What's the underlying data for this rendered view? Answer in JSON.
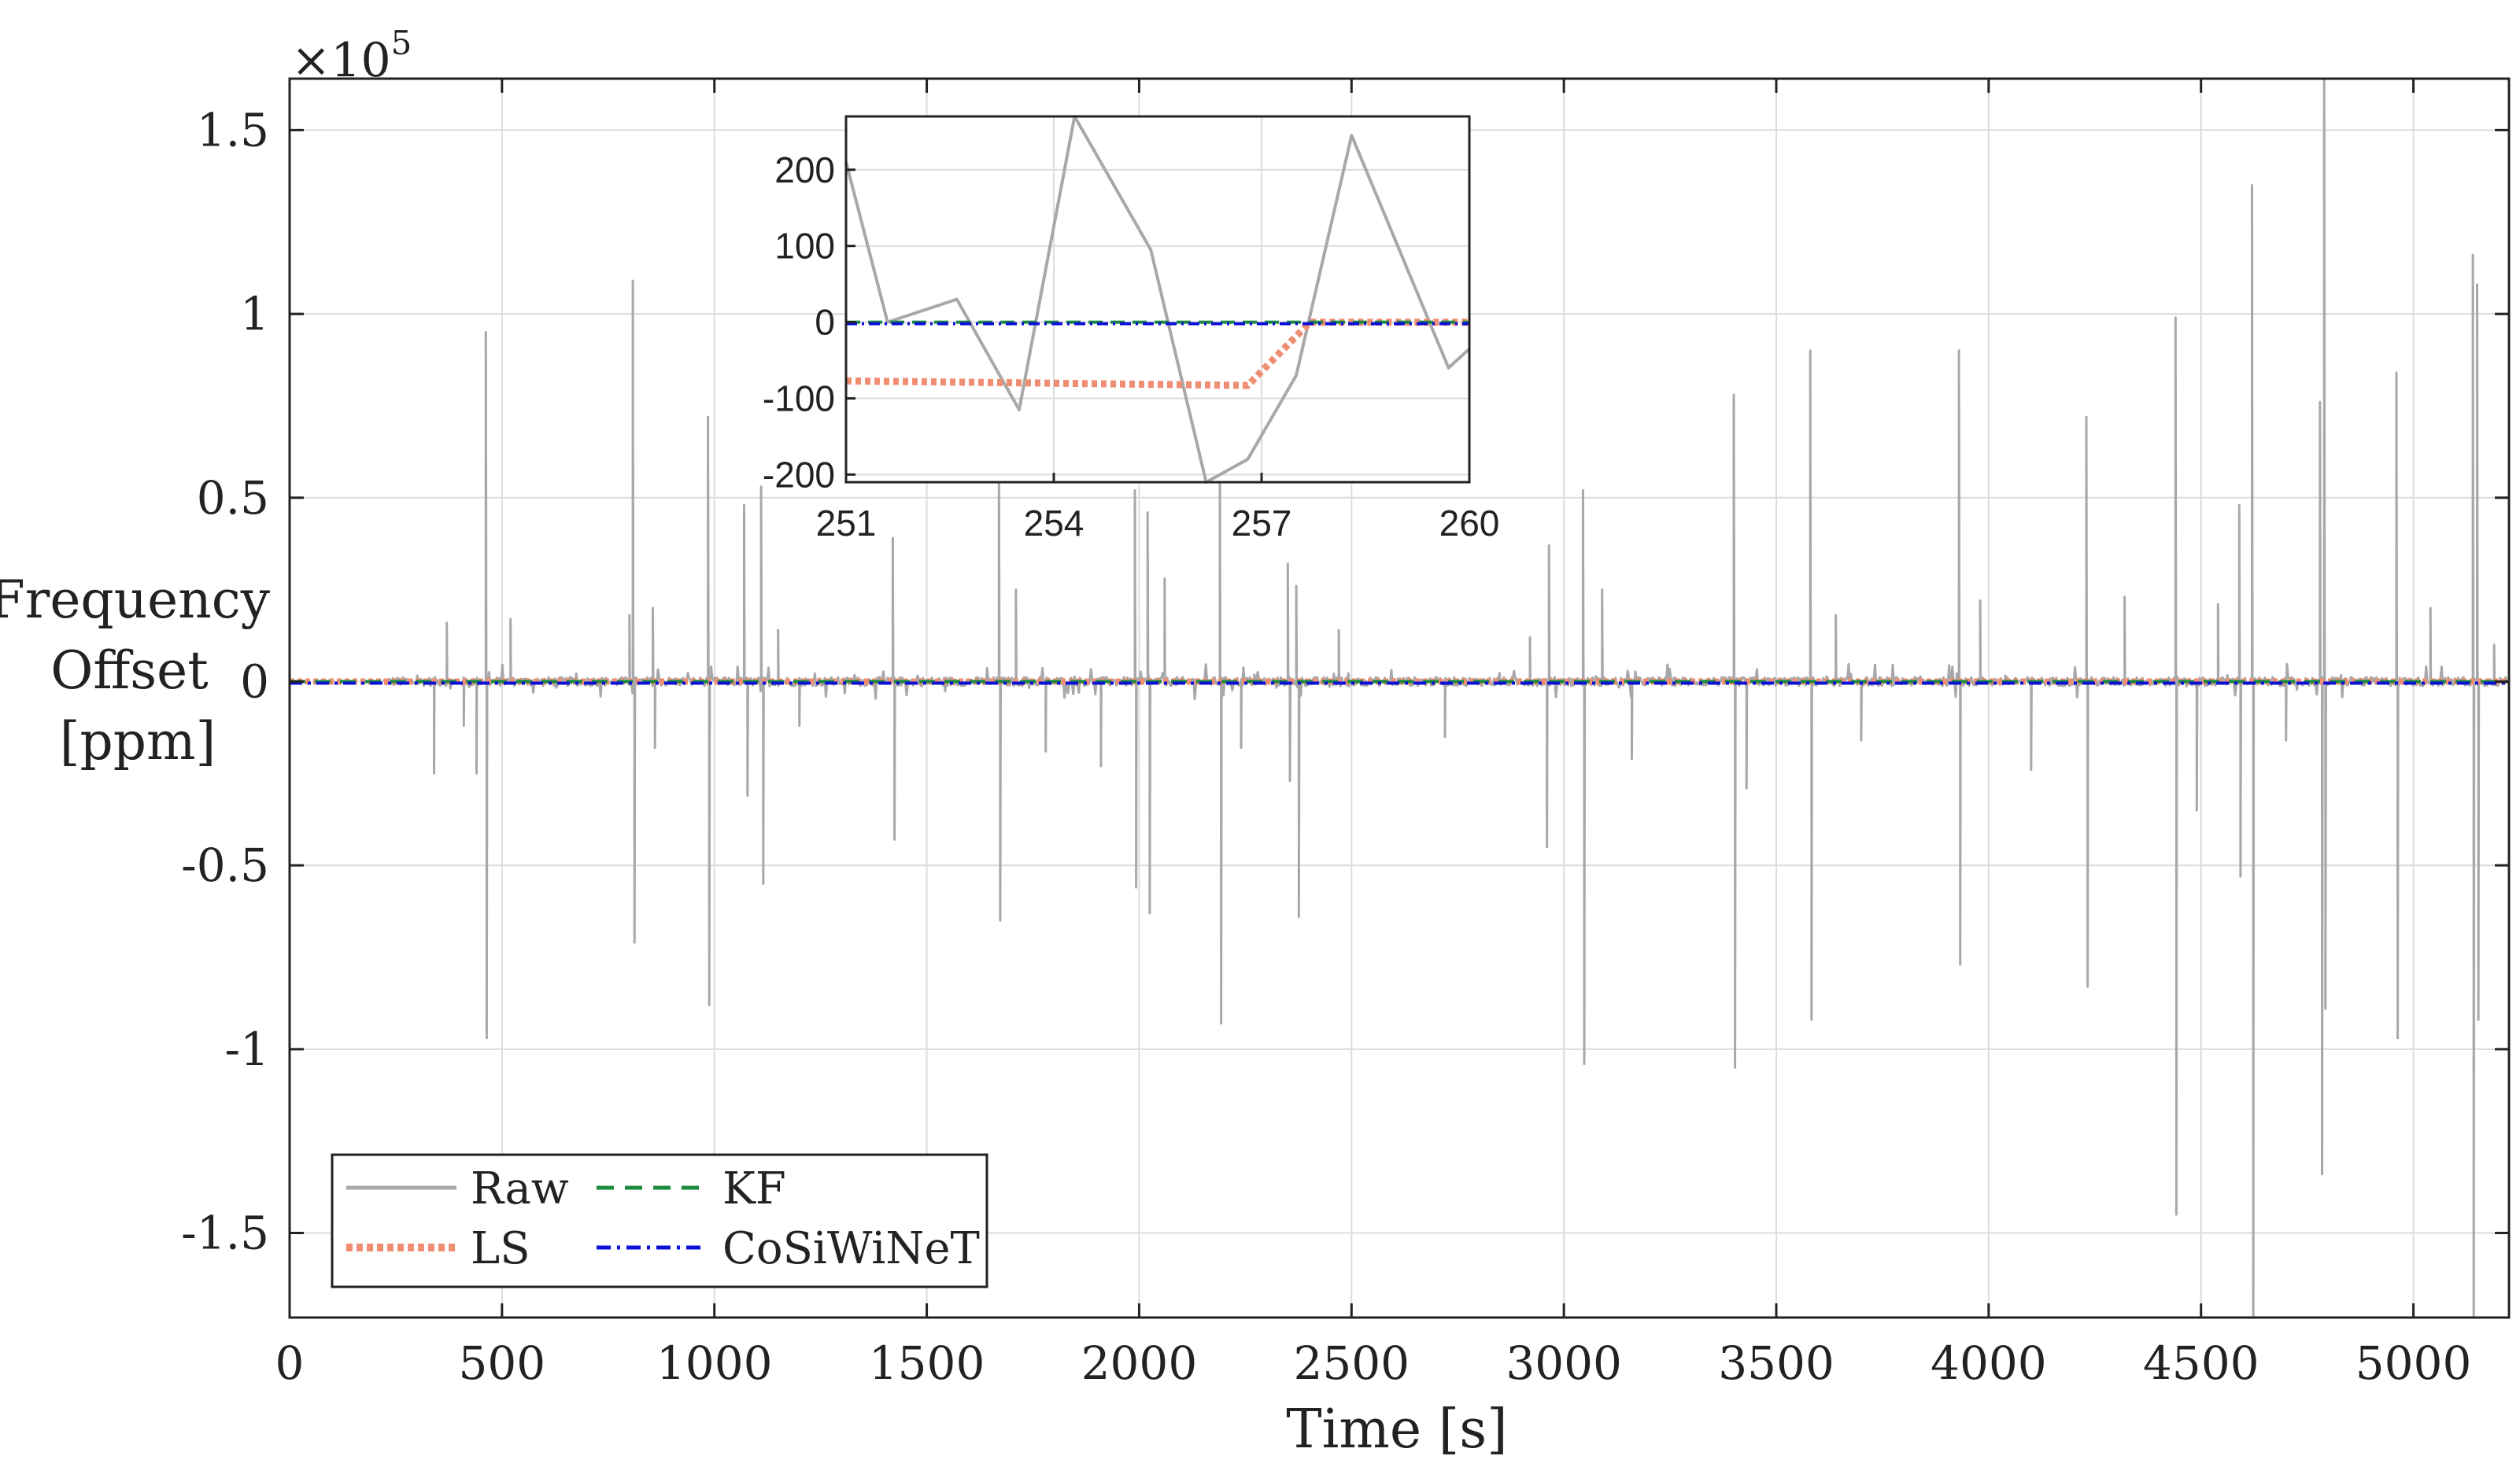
{
  "chart_data": [
    {
      "id": "main",
      "type": "line",
      "title": "",
      "xlabel": "Time [s]",
      "ylabel_lines": [
        "Frequency",
        "Offset",
        "[ppm]"
      ],
      "y_exponent_label": "×10",
      "y_exponent_power": "5",
      "xlim": [
        0,
        5225
      ],
      "ylim": [
        -1.73,
        1.64
      ],
      "y_units_note": "values in units of 10^5 ppm",
      "grid": true,
      "legend_position": "bottom-left",
      "xticks": [
        0,
        500,
        1000,
        1500,
        2000,
        2500,
        3000,
        3500,
        4000,
        4500,
        5000
      ],
      "xtick_labels": [
        "0",
        "500",
        "1000",
        "1500",
        "2000",
        "2500",
        "3000",
        "3500",
        "4000",
        "4500",
        "5000"
      ],
      "yticks": [
        1.5,
        1,
        0.5,
        0,
        -0.5,
        -1,
        -1.5
      ],
      "ytick_labels": [
        "1.5",
        "1",
        "0.5",
        "0",
        "-0.5",
        "-1",
        "-1.5"
      ],
      "raw_start": 220,
      "raw_end": 5225,
      "raw_noise_amplitude": 0.012,
      "raw_spikes": [
        {
          "t": 340,
          "v": -0.25
        },
        {
          "t": 370,
          "v": 0.16
        },
        {
          "t": 410,
          "v": -0.12
        },
        {
          "t": 440,
          "v": -0.25
        },
        {
          "t": 462,
          "v": 0.95
        },
        {
          "t": 464,
          "v": -0.97
        },
        {
          "t": 520,
          "v": 0.17
        },
        {
          "t": 800,
          "v": 0.18
        },
        {
          "t": 808,
          "v": 1.09
        },
        {
          "t": 812,
          "v": -0.71
        },
        {
          "t": 855,
          "v": 0.2
        },
        {
          "t": 860,
          "v": -0.18
        },
        {
          "t": 985,
          "v": 0.72
        },
        {
          "t": 988,
          "v": -0.88
        },
        {
          "t": 1070,
          "v": 0.48
        },
        {
          "t": 1078,
          "v": -0.31
        },
        {
          "t": 1110,
          "v": 0.53
        },
        {
          "t": 1115,
          "v": -0.55
        },
        {
          "t": 1150,
          "v": 0.14
        },
        {
          "t": 1200,
          "v": -0.12
        },
        {
          "t": 1420,
          "v": 0.39
        },
        {
          "t": 1424,
          "v": -0.43
        },
        {
          "t": 1670,
          "v": 0.6
        },
        {
          "t": 1673,
          "v": -0.65
        },
        {
          "t": 1710,
          "v": 0.25
        },
        {
          "t": 1780,
          "v": -0.19
        },
        {
          "t": 1910,
          "v": -0.23
        },
        {
          "t": 1990,
          "v": 0.52
        },
        {
          "t": 1993,
          "v": -0.56
        },
        {
          "t": 2020,
          "v": 0.46
        },
        {
          "t": 2025,
          "v": -0.63
        },
        {
          "t": 2060,
          "v": 0.28
        },
        {
          "t": 2190,
          "v": 0.6
        },
        {
          "t": 2193,
          "v": -0.93
        },
        {
          "t": 2240,
          "v": -0.18
        },
        {
          "t": 2350,
          "v": 0.32
        },
        {
          "t": 2355,
          "v": -0.27
        },
        {
          "t": 2370,
          "v": 0.26
        },
        {
          "t": 2376,
          "v": -0.64
        },
        {
          "t": 2470,
          "v": 0.14
        },
        {
          "t": 2720,
          "v": -0.15
        },
        {
          "t": 2920,
          "v": 0.12
        },
        {
          "t": 2960,
          "v": -0.45
        },
        {
          "t": 2965,
          "v": 0.37
        },
        {
          "t": 3045,
          "v": 0.52
        },
        {
          "t": 3048,
          "v": -1.04
        },
        {
          "t": 3090,
          "v": 0.25
        },
        {
          "t": 3160,
          "v": -0.21
        },
        {
          "t": 3400,
          "v": 0.78
        },
        {
          "t": 3403,
          "v": -1.05
        },
        {
          "t": 3430,
          "v": -0.29
        },
        {
          "t": 3580,
          "v": 0.9
        },
        {
          "t": 3583,
          "v": -0.92
        },
        {
          "t": 3640,
          "v": 0.18
        },
        {
          "t": 3700,
          "v": -0.16
        },
        {
          "t": 3930,
          "v": 0.9
        },
        {
          "t": 3933,
          "v": -0.77
        },
        {
          "t": 3980,
          "v": 0.22
        },
        {
          "t": 4100,
          "v": -0.24
        },
        {
          "t": 4230,
          "v": 0.72
        },
        {
          "t": 4233,
          "v": -0.83
        },
        {
          "t": 4320,
          "v": 0.23
        },
        {
          "t": 4440,
          "v": 0.99
        },
        {
          "t": 4442,
          "v": -1.45
        },
        {
          "t": 4490,
          "v": -0.35
        },
        {
          "t": 4540,
          "v": 0.21
        },
        {
          "t": 4590,
          "v": 0.48
        },
        {
          "t": 4593,
          "v": -0.53
        },
        {
          "t": 4620,
          "v": 1.35
        },
        {
          "t": 4623,
          "v": -1.73
        },
        {
          "t": 4700,
          "v": -0.16
        },
        {
          "t": 4780,
          "v": 0.76
        },
        {
          "t": 4785,
          "v": -1.34
        },
        {
          "t": 4790,
          "v": 1.64
        },
        {
          "t": 4793,
          "v": -0.89
        },
        {
          "t": 4960,
          "v": 0.84
        },
        {
          "t": 4963,
          "v": -0.97
        },
        {
          "t": 5040,
          "v": 0.2
        },
        {
          "t": 5140,
          "v": 1.16
        },
        {
          "t": 5142,
          "v": -1.73
        },
        {
          "t": 5150,
          "v": 1.08
        },
        {
          "t": 5153,
          "v": -0.92
        },
        {
          "t": 5190,
          "v": 0.1
        }
      ],
      "series": [
        {
          "name": "Raw",
          "color": "#a8a8a8",
          "style": "solid"
        },
        {
          "name": "LS",
          "color": "#ef8e73",
          "style": "dotted",
          "values_note": "≈ 0 at this scale"
        },
        {
          "name": "KF",
          "color": "#1a8a3e",
          "style": "dashed",
          "values_note": "≈ 0"
        },
        {
          "name": "CoSiWiNeT",
          "color": "#0b10d6",
          "style": "dashdot",
          "values_note": "≈ 0"
        }
      ],
      "legend": {
        "entries": [
          "Raw",
          "KF",
          "LS",
          "CoSiWiNeT"
        ]
      }
    },
    {
      "id": "inset",
      "type": "line",
      "title": "",
      "xlim": [
        251,
        260
      ],
      "ylim": [
        -210,
        270
      ],
      "grid": true,
      "xticks": [
        251,
        254,
        257,
        260
      ],
      "xtick_labels": [
        "251",
        "254",
        "257",
        "260"
      ],
      "yticks": [
        200,
        100,
        0,
        -100,
        -200
      ],
      "ytick_labels": [
        "200",
        "100",
        "0",
        "-100",
        "-200"
      ],
      "series": [
        {
          "name": "Raw",
          "color": "#a8a8a8",
          "style": "solid",
          "x": [
            251,
            251.6,
            252.6,
            253.5,
            254.3,
            255.4,
            256.2,
            256.8,
            257.5,
            258.3,
            259.7,
            260
          ],
          "y": [
            210,
            0,
            30,
            -115,
            270,
            95,
            -210,
            -180,
            -70,
            245,
            -60,
            -35
          ]
        },
        {
          "name": "LS",
          "color": "#ef8e73",
          "style": "dotted",
          "x": [
            251,
            256.8,
            257.7,
            260
          ],
          "y": [
            -77,
            -83,
            0,
            0
          ]
        },
        {
          "name": "KF",
          "color": "#1a8a3e",
          "style": "dashed",
          "x": [
            251,
            260
          ],
          "y": [
            0,
            0
          ]
        },
        {
          "name": "CoSiWiNeT",
          "color": "#0b10d6",
          "style": "dashdot",
          "x": [
            251,
            260
          ],
          "y": [
            -2,
            -2
          ]
        }
      ]
    }
  ]
}
